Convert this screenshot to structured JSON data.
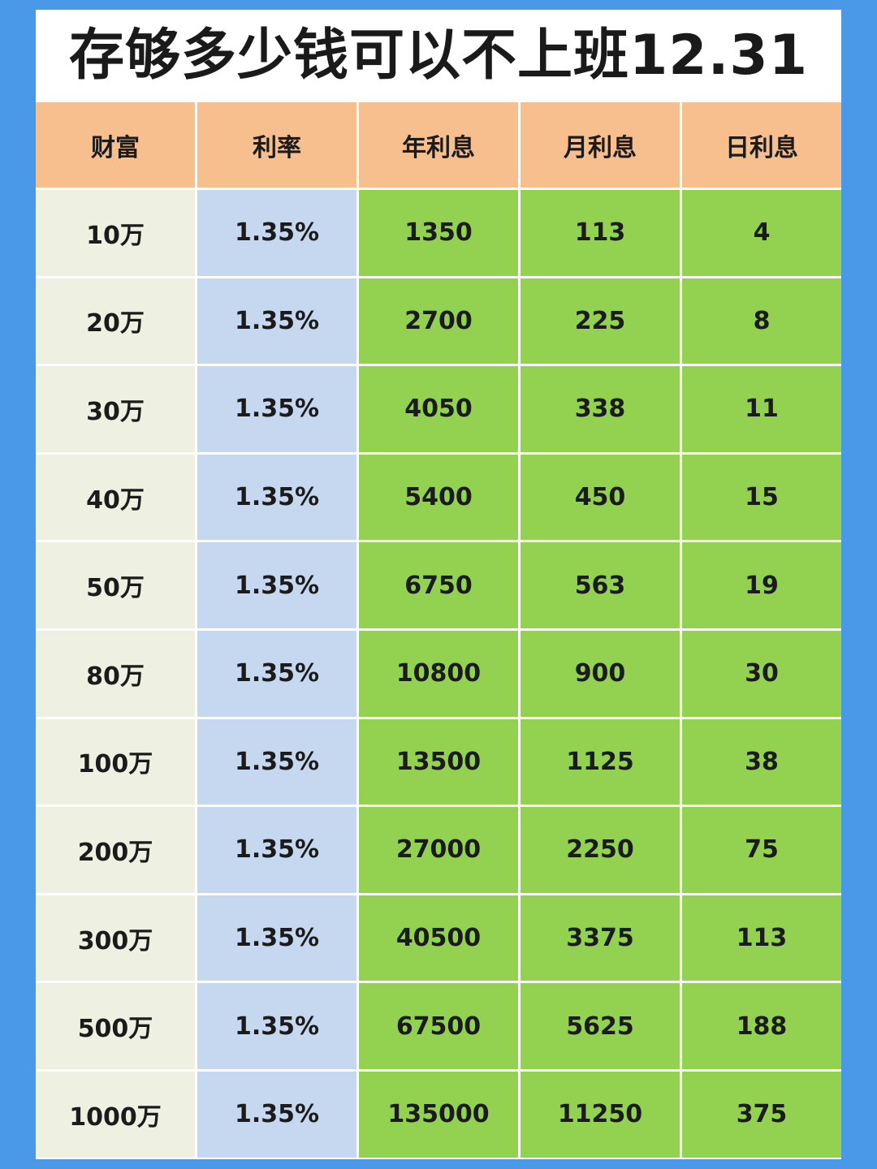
{
  "title": "存够多少钱可以不上班12.31",
  "headers": [
    "财富",
    "利率",
    "年利息",
    "月利息",
    "日利息"
  ],
  "rows": [
    [
      "10万",
      "1.35%",
      "1350",
      "113",
      "4"
    ],
    [
      "20万",
      "1.35%",
      "2700",
      "225",
      "8"
    ],
    [
      "30万",
      "1.35%",
      "4050",
      "338",
      "11"
    ],
    [
      "40万",
      "1.35%",
      "5400",
      "450",
      "15"
    ],
    [
      "50万",
      "1.35%",
      "6750",
      "563",
      "19"
    ],
    [
      "80万",
      "1.35%",
      "10800",
      "900",
      "30"
    ],
    [
      "100万",
      "1.35%",
      "13500",
      "1125",
      "38"
    ],
    [
      "200万",
      "1.35%",
      "27000",
      "2250",
      "75"
    ],
    [
      "300万",
      "1.35%",
      "40500",
      "3375",
      "113"
    ],
    [
      "500万",
      "1.35%",
      "67500",
      "5625",
      "188"
    ],
    [
      "1000万",
      "1.35%",
      "135000",
      "11250",
      "375"
    ]
  ],
  "colors": {
    "frame": "#4A98E8",
    "header": "#F7BF8E",
    "wealth": "#EEF0E2",
    "rate": "#C5D8F0",
    "interest": "#93D150"
  }
}
